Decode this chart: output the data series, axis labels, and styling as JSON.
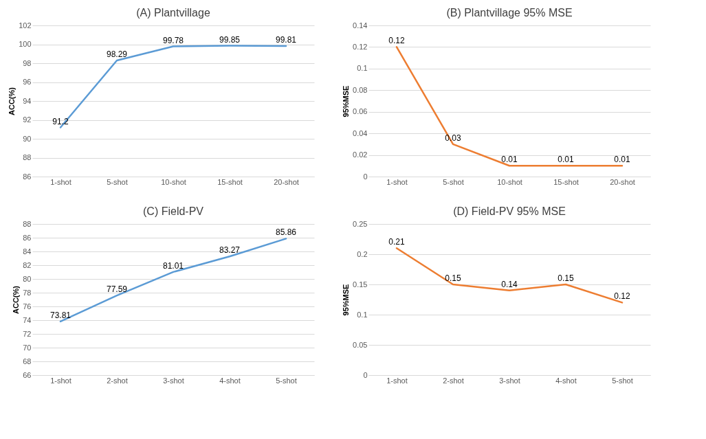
{
  "chart_data": [
    {
      "type": "line",
      "title": "(A) Plantvillage",
      "ylabel": "ACC(%)",
      "categories": [
        "1-shot",
        "5-shot",
        "10-shot",
        "15-shot",
        "20-shot"
      ],
      "values": [
        91.2,
        98.29,
        99.78,
        99.85,
        99.81
      ],
      "color": "#5b9bd5",
      "ylim": [
        86,
        102
      ],
      "yticks": [
        86,
        88,
        90,
        92,
        94,
        96,
        98,
        100,
        102
      ],
      "grid": "y",
      "data_labels": true
    },
    {
      "type": "line",
      "title": "(B) Plantvillage 95% MSE",
      "ylabel": "95%MSE",
      "categories": [
        "1-shot",
        "5-shot",
        "10-shot",
        "15-shot",
        "20-shot"
      ],
      "values": [
        0.12,
        0.03,
        0.01,
        0.01,
        0.01
      ],
      "color": "#ed7d31",
      "ylim": [
        0,
        0.14
      ],
      "yticks": [
        0,
        0.02,
        0.04,
        0.06,
        0.08,
        0.1,
        0.12,
        0.14
      ],
      "grid": "y",
      "data_labels": true
    },
    {
      "type": "line",
      "title": "(C) Field-PV",
      "ylabel": "ACC(%)",
      "categories": [
        "1-shot",
        "2-shot",
        "3-shot",
        "4-shot",
        "5-shot"
      ],
      "values": [
        73.81,
        77.59,
        81.01,
        83.27,
        85.86
      ],
      "color": "#5b9bd5",
      "ylim": [
        66,
        88
      ],
      "yticks": [
        66,
        68,
        70,
        72,
        74,
        76,
        78,
        80,
        82,
        84,
        86,
        88
      ],
      "grid": "y",
      "data_labels": true
    },
    {
      "type": "line",
      "title": "(D) Field-PV 95% MSE",
      "ylabel": "95%MSE",
      "categories": [
        "1-shot",
        "2-shot",
        "3-shot",
        "4-shot",
        "5-shot"
      ],
      "values": [
        0.21,
        0.15,
        0.14,
        0.15,
        0.12
      ],
      "color": "#ed7d31",
      "ylim": [
        0,
        0.25
      ],
      "yticks": [
        0,
        0.05,
        0.1,
        0.15,
        0.2,
        0.25
      ],
      "grid": "y",
      "data_labels": true
    }
  ]
}
